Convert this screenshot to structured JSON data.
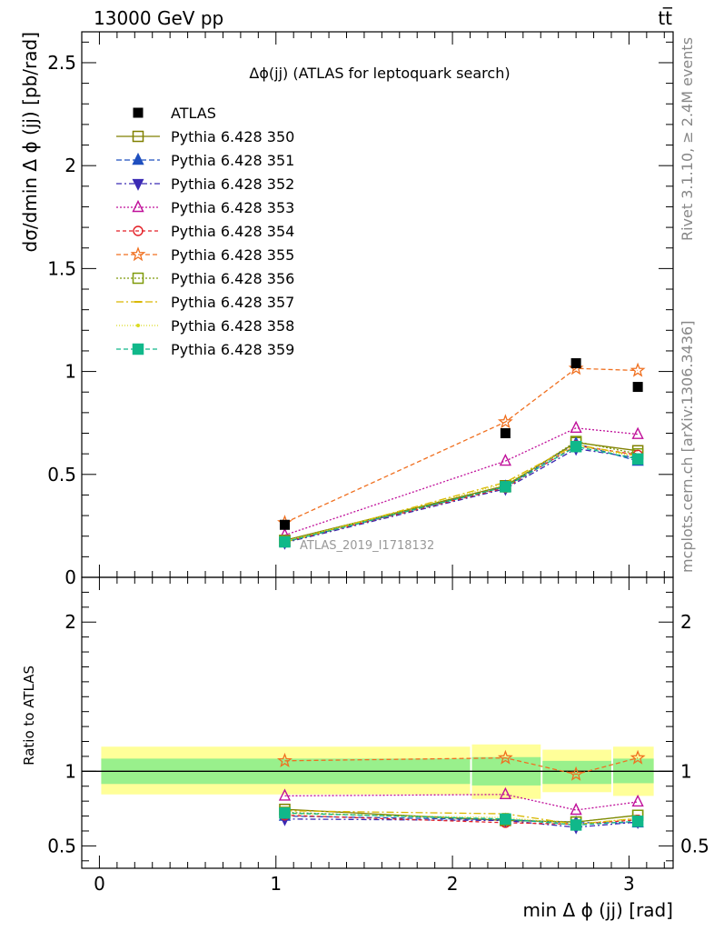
{
  "header": {
    "energy_label": "13000 GeV pp",
    "process_label": "tt̅",
    "rivet_label": "Rivet 3.1.10, ≥ 2.4M events",
    "mcplots_label": "mcplots.cern.ch [arXiv:1306.3436]",
    "analysis_label": "ATLAS_2019_I1718132"
  },
  "chart_data": {
    "type": "line",
    "title": "Δϕ(jj) (ATLAS for leptoquark search)",
    "xlabel": "min Δ ϕ (jj) [rad]",
    "ylabel": "dσ/dmin Δ ϕ (jj) [pb/rad]",
    "ratio_ylabel": "Ratio to ATLAS",
    "xlim": [
      -0.1,
      3.25
    ],
    "ylim": [
      0,
      2.65
    ],
    "ratio_ylim": [
      0.35,
      2.3
    ],
    "x_ticks": [
      "0",
      "1",
      "2",
      "3"
    ],
    "y_ticks": [
      "0",
      "0.5",
      "1",
      "1.5",
      "2",
      "2.5"
    ],
    "ratio_ticks": [
      "0.5",
      "1",
      "2"
    ],
    "x": [
      1.05,
      2.3,
      2.7,
      3.05
    ],
    "bins": [
      [
        0.0,
        2.1
      ],
      [
        2.1,
        2.5
      ],
      [
        2.5,
        2.9
      ],
      [
        2.9,
        3.14
      ]
    ],
    "band_inner": [
      [
        0.915,
        1.085
      ],
      [
        0.905,
        1.095
      ],
      [
        0.915,
        1.07
      ],
      [
        0.92,
        1.085
      ]
    ],
    "band_outer": [
      [
        0.845,
        1.165
      ],
      [
        0.815,
        1.18
      ],
      [
        0.86,
        1.145
      ],
      [
        0.835,
        1.165
      ]
    ],
    "data": {
      "name": "ATLAS",
      "values": [
        0.255,
        0.7,
        1.04,
        0.925
      ]
    },
    "series": [
      {
        "name": "Pythia 6.428 350",
        "color": "#808000",
        "dash": "",
        "marker": "square-open",
        "values": [
          0.18,
          0.445,
          0.655,
          0.615
        ],
        "ratio": [
          0.745,
          0.67,
          0.66,
          0.705
        ]
      },
      {
        "name": "Pythia 6.428 351",
        "color": "#1f4fbf",
        "dash": "6,3",
        "marker": "triangle-up",
        "values": [
          0.172,
          0.44,
          0.65,
          0.565
        ],
        "ratio": [
          0.7,
          0.675,
          0.655,
          0.655
        ]
      },
      {
        "name": "Pythia 6.428 352",
        "color": "#3b2ab4",
        "dash": "6,3,2,3",
        "marker": "triangle-down",
        "values": [
          0.168,
          0.43,
          0.625,
          0.58
        ],
        "ratio": [
          0.68,
          0.67,
          0.625,
          0.66
        ]
      },
      {
        "name": "Pythia 6.428 353",
        "color": "#c0109a",
        "dash": "2,2",
        "marker": "triangle-open",
        "values": [
          0.205,
          0.565,
          0.725,
          0.695
        ],
        "ratio": [
          0.835,
          0.845,
          0.74,
          0.795
        ]
      },
      {
        "name": "Pythia 6.428 354",
        "color": "#e31f26",
        "dash": "4,3",
        "marker": "circle-open",
        "values": [
          0.172,
          0.435,
          0.64,
          0.595
        ],
        "ratio": [
          0.705,
          0.655,
          0.645,
          0.675
        ]
      },
      {
        "name": "Pythia 6.428 355",
        "color": "#f07020",
        "dash": "5,3",
        "marker": "star-open",
        "values": [
          0.265,
          0.755,
          1.015,
          1.005
        ],
        "ratio": [
          1.07,
          1.09,
          0.98,
          1.09
        ]
      },
      {
        "name": "Pythia 6.428 356",
        "color": "#7f9a0a",
        "dash": "2,2",
        "marker": "square-open",
        "values": [
          0.178,
          0.44,
          0.66,
          0.6
        ],
        "ratio": [
          0.725,
          0.675,
          0.66,
          0.705
        ]
      },
      {
        "name": "Pythia 6.428 357",
        "color": "#d9b800",
        "dash": "8,3,2,3",
        "marker": "dash",
        "values": [
          0.17,
          0.462,
          0.645,
          0.59
        ],
        "ratio": [
          0.735,
          0.715,
          0.645,
          0.685
        ]
      },
      {
        "name": "Pythia 6.428 358",
        "color": "#dada20",
        "dash": "1,2",
        "marker": "dot",
        "values": [
          0.175,
          0.455,
          0.64,
          0.585
        ],
        "ratio": [
          0.715,
          0.69,
          0.645,
          0.685
        ]
      },
      {
        "name": "Pythia 6.428 359",
        "color": "#10b88a",
        "dash": "5,3",
        "marker": "square-filled",
        "values": [
          0.172,
          0.44,
          0.635,
          0.575
        ],
        "ratio": [
          0.72,
          0.68,
          0.64,
          0.665
        ]
      }
    ]
  }
}
